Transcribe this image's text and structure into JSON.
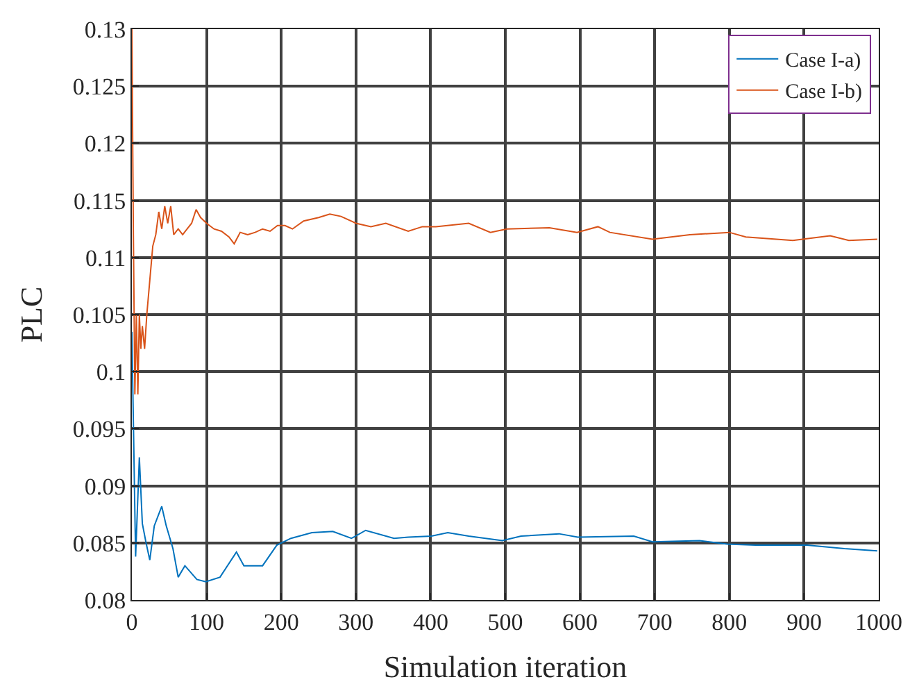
{
  "chart_data": {
    "type": "line",
    "xlabel": "Simulation iteration",
    "ylabel": "PLC",
    "xlim": [
      0,
      1000
    ],
    "ylim": [
      0.08,
      0.13
    ],
    "xticks": [
      0,
      100,
      200,
      300,
      400,
      500,
      600,
      700,
      800,
      900,
      1000
    ],
    "yticks": [
      0.08,
      0.085,
      0.09,
      0.095,
      0.1,
      0.105,
      0.11,
      0.115,
      0.12,
      0.125,
      0.13
    ],
    "grid": true,
    "legend": "top right",
    "marker": "none",
    "line_style": "solid",
    "series": [
      {
        "name": "Case I-a)",
        "color": "#0072bd",
        "x": [
          0,
          5,
          10,
          14,
          19,
          24,
          30,
          40,
          46,
          55,
          62,
          71,
          87,
          99,
          118,
          140,
          150,
          175,
          194,
          213,
          241,
          269,
          294,
          313,
          351,
          370,
          401,
          423,
          451,
          496,
          521,
          572,
          597,
          672,
          697,
          760,
          797,
          835,
          904,
          954,
          998
        ],
        "values": [
          0.1035,
          0.0838,
          0.0925,
          0.0867,
          0.085,
          0.0835,
          0.0865,
          0.0882,
          0.0865,
          0.0845,
          0.082,
          0.083,
          0.0818,
          0.0816,
          0.082,
          0.0842,
          0.083,
          0.083,
          0.0848,
          0.0854,
          0.0859,
          0.086,
          0.0854,
          0.0861,
          0.0854,
          0.0855,
          0.0856,
          0.0859,
          0.0856,
          0.0852,
          0.0856,
          0.0858,
          0.0855,
          0.0856,
          0.0851,
          0.0852,
          0.0849,
          0.0848,
          0.0848,
          0.0845,
          0.0843
        ]
      },
      {
        "name": "Case I-b)",
        "color": "#d95319",
        "x": [
          0,
          2,
          4,
          6,
          8,
          10,
          12,
          14,
          17,
          20,
          24,
          28,
          32,
          36,
          40,
          44,
          48,
          52,
          56,
          62,
          68,
          74,
          80,
          86,
          92,
          100,
          110,
          120,
          130,
          137,
          145,
          155,
          165,
          175,
          185,
          195,
          205,
          215,
          230,
          250,
          265,
          280,
          300,
          320,
          340,
          370,
          389,
          407,
          451,
          480,
          502,
          559,
          596,
          624,
          640,
          697,
          747,
          800,
          822,
          885,
          935,
          960,
          998
        ],
        "values": [
          0.13,
          0.112,
          0.098,
          0.105,
          0.098,
          0.105,
          0.102,
          0.104,
          0.102,
          0.105,
          0.108,
          0.111,
          0.112,
          0.114,
          0.1125,
          0.1145,
          0.113,
          0.1145,
          0.112,
          0.1125,
          0.112,
          0.1125,
          0.113,
          0.1142,
          0.1135,
          0.113,
          0.1125,
          0.1123,
          0.1118,
          0.1112,
          0.1122,
          0.112,
          0.1122,
          0.1125,
          0.1123,
          0.1128,
          0.1128,
          0.1125,
          0.1132,
          0.1135,
          0.1138,
          0.1136,
          0.113,
          0.1127,
          0.113,
          0.1123,
          0.1127,
          0.1127,
          0.113,
          0.1122,
          0.1125,
          0.1126,
          0.1122,
          0.1127,
          0.1122,
          0.1116,
          0.112,
          0.1122,
          0.1118,
          0.1115,
          0.1119,
          0.1115,
          0.1116
        ]
      }
    ]
  }
}
